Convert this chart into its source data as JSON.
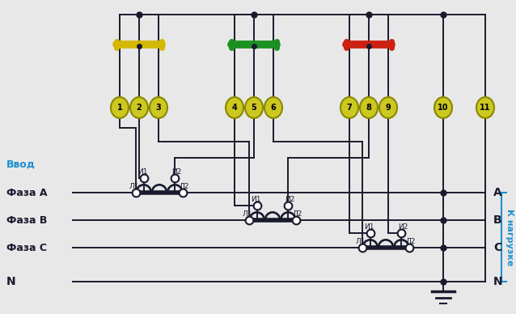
{
  "bg_color": "#e8e8e8",
  "line_color": "#1a1a2e",
  "fuse_yellow_color": "#d4b800",
  "fuse_green_color": "#1a9020",
  "fuse_red_color": "#cc2010",
  "terminal_fill": "#c8c800",
  "terminal_border": "#666600",
  "phase_label_color": "#1a90d0",
  "title_left": "Ввод",
  "title_right": "К нагрузке",
  "phases": [
    "Фаза А",
    "Фаза B",
    "Фаза С",
    "N"
  ],
  "phase_labels_right": [
    "А",
    "B",
    "С",
    "N"
  ],
  "terminal_numbers": [
    "1",
    "2",
    "3",
    "4",
    "5",
    "6",
    "7",
    "8",
    "9",
    "10",
    "11"
  ]
}
